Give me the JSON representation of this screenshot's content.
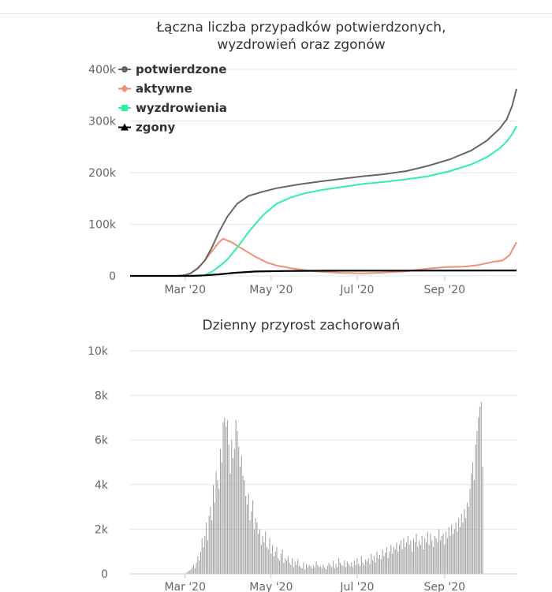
{
  "chart_data": [
    {
      "type": "line",
      "title_lines": [
        "Łączna liczba przypadków potwierdzonych,",
        "wyzdrowień oraz zgonów"
      ],
      "x_range": [
        "2020-01-22",
        "2020-10-22"
      ],
      "x_ticks": [
        {
          "date": "2020-03-01",
          "label": "Mar '20"
        },
        {
          "date": "2020-05-01",
          "label": "May '20"
        },
        {
          "date": "2020-07-01",
          "label": "Jul '20"
        },
        {
          "date": "2020-09-01",
          "label": "Sep '20"
        }
      ],
      "y_range": [
        0,
        400000
      ],
      "y_ticks": [
        {
          "value": 0,
          "label": "0"
        },
        {
          "value": 100000,
          "label": "100k"
        },
        {
          "value": 200000,
          "label": "200k"
        },
        {
          "value": 300000,
          "label": "300k"
        },
        {
          "value": 400000,
          "label": "400k"
        }
      ],
      "grid": true,
      "legend": "top-left",
      "series": [
        {
          "name": "potwierdzone",
          "color": "#666666",
          "marker": "circle",
          "points": [
            [
              "2020-01-22",
              0
            ],
            [
              "2020-02-25",
              0
            ],
            [
              "2020-03-01",
              1500
            ],
            [
              "2020-03-05",
              5000
            ],
            [
              "2020-03-10",
              15000
            ],
            [
              "2020-03-15",
              30000
            ],
            [
              "2020-03-20",
              55000
            ],
            [
              "2020-03-25",
              85000
            ],
            [
              "2020-03-31",
              115000
            ],
            [
              "2020-04-07",
              140000
            ],
            [
              "2020-04-15",
              155000
            ],
            [
              "2020-04-25",
              163000
            ],
            [
              "2020-05-05",
              170000
            ],
            [
              "2020-05-20",
              177000
            ],
            [
              "2020-06-05",
              183000
            ],
            [
              "2020-06-20",
              188000
            ],
            [
              "2020-07-05",
              193000
            ],
            [
              "2020-07-20",
              197000
            ],
            [
              "2020-08-05",
              203000
            ],
            [
              "2020-08-20",
              213000
            ],
            [
              "2020-09-05",
              226000
            ],
            [
              "2020-09-20",
              243000
            ],
            [
              "2020-10-01",
              262000
            ],
            [
              "2020-10-10",
              285000
            ],
            [
              "2020-10-15",
              303000
            ],
            [
              "2020-10-19",
              330000
            ],
            [
              "2020-10-22",
              362000
            ]
          ]
        },
        {
          "name": "aktywne",
          "color": "#f28f79",
          "marker": "diamond",
          "points": [
            [
              "2020-01-22",
              0
            ],
            [
              "2020-02-25",
              0
            ],
            [
              "2020-03-01",
              1500
            ],
            [
              "2020-03-05",
              5000
            ],
            [
              "2020-03-10",
              14000
            ],
            [
              "2020-03-15",
              30000
            ],
            [
              "2020-03-20",
              48000
            ],
            [
              "2020-03-25",
              65000
            ],
            [
              "2020-03-28",
              72000
            ],
            [
              "2020-04-03",
              65000
            ],
            [
              "2020-04-12",
              50000
            ],
            [
              "2020-04-20",
              37000
            ],
            [
              "2020-04-28",
              26000
            ],
            [
              "2020-05-05",
              20000
            ],
            [
              "2020-05-15",
              15000
            ],
            [
              "2020-05-25",
              11000
            ],
            [
              "2020-06-05",
              8000
            ],
            [
              "2020-06-20",
              6000
            ],
            [
              "2020-07-05",
              5000
            ],
            [
              "2020-07-20",
              6500
            ],
            [
              "2020-08-05",
              9000
            ],
            [
              "2020-08-20",
              14000
            ],
            [
              "2020-09-01",
              17000
            ],
            [
              "2020-09-15",
              18000
            ],
            [
              "2020-09-25",
              21000
            ],
            [
              "2020-10-05",
              27000
            ],
            [
              "2020-10-12",
              30000
            ],
            [
              "2020-10-17",
              40000
            ],
            [
              "2020-10-22",
              65000
            ]
          ]
        },
        {
          "name": "wyzdrowienia",
          "color": "#2ef2a0",
          "marker": "square",
          "points": [
            [
              "2020-01-22",
              0
            ],
            [
              "2020-03-12",
              0
            ],
            [
              "2020-03-15",
              2000
            ],
            [
              "2020-03-20",
              8000
            ],
            [
              "2020-03-25",
              18000
            ],
            [
              "2020-03-31",
              32000
            ],
            [
              "2020-04-07",
              55000
            ],
            [
              "2020-04-15",
              85000
            ],
            [
              "2020-04-25",
              117000
            ],
            [
              "2020-05-05",
              140000
            ],
            [
              "2020-05-15",
              152000
            ],
            [
              "2020-05-25",
              160000
            ],
            [
              "2020-06-05",
              166000
            ],
            [
              "2020-06-20",
              172000
            ],
            [
              "2020-07-05",
              178000
            ],
            [
              "2020-07-20",
              182000
            ],
            [
              "2020-08-05",
              187000
            ],
            [
              "2020-08-20",
              193000
            ],
            [
              "2020-09-05",
              203000
            ],
            [
              "2020-09-20",
              216000
            ],
            [
              "2020-10-01",
              230000
            ],
            [
              "2020-10-10",
              247000
            ],
            [
              "2020-10-15",
              260000
            ],
            [
              "2020-10-19",
              275000
            ],
            [
              "2020-10-22",
              290000
            ]
          ]
        },
        {
          "name": "zgony",
          "color": "#000000",
          "marker": "triangle",
          "points": [
            [
              "2020-01-22",
              0
            ],
            [
              "2020-03-05",
              0
            ],
            [
              "2020-03-15",
              1000
            ],
            [
              "2020-03-25",
              3000
            ],
            [
              "2020-04-05",
              6000
            ],
            [
              "2020-04-20",
              8500
            ],
            [
              "2020-05-10",
              9500
            ],
            [
              "2020-06-10",
              10000
            ],
            [
              "2020-08-01",
              10200
            ],
            [
              "2020-10-22",
              10600
            ]
          ]
        }
      ]
    },
    {
      "type": "bar",
      "title": "Dzienny przyrost zachorowań",
      "x_range": [
        "2020-01-22",
        "2020-10-22"
      ],
      "x_ticks": [
        {
          "date": "2020-03-01",
          "label": "Mar '20"
        },
        {
          "date": "2020-05-01",
          "label": "May '20"
        },
        {
          "date": "2020-07-01",
          "label": "Jul '20"
        },
        {
          "date": "2020-09-01",
          "label": "Sep '20"
        }
      ],
      "y_range": [
        0,
        10000
      ],
      "y_ticks": [
        {
          "value": 0,
          "label": "0"
        },
        {
          "value": 2000,
          "label": "2k"
        },
        {
          "value": 4000,
          "label": "4k"
        },
        {
          "value": 6000,
          "label": "6k"
        },
        {
          "value": 8000,
          "label": "8k"
        },
        {
          "value": 10000,
          "label": "10k"
        }
      ],
      "grid": true,
      "color": "#a0a0a0",
      "daily_start": "2020-02-23",
      "daily_values": [
        0,
        0,
        0,
        0,
        0,
        5,
        10,
        20,
        50,
        100,
        150,
        200,
        300,
        400,
        250,
        500,
        800,
        600,
        1000,
        1600,
        1200,
        1700,
        2300,
        1500,
        2600,
        3000,
        2400,
        4000,
        3200,
        4600,
        4200,
        3800,
        5600,
        5000,
        6800,
        7000,
        6600,
        6900,
        5800,
        4500,
        6000,
        5200,
        5600,
        6900,
        6400,
        5700,
        4800,
        5300,
        4400,
        4200,
        3500,
        3100,
        3600,
        2400,
        2800,
        3300,
        2000,
        2500,
        2300,
        1800,
        2000,
        1300,
        1700,
        1400,
        1900,
        1200,
        1100,
        1600,
        900,
        1300,
        800,
        1000,
        1200,
        700,
        600,
        900,
        1100,
        500,
        700,
        600,
        800,
        500,
        400,
        700,
        300,
        550,
        400,
        650,
        350,
        300,
        250,
        500,
        200,
        450,
        300,
        400,
        350,
        250,
        380,
        300,
        550,
        400,
        300,
        350,
        250,
        420,
        300,
        200,
        350,
        500,
        400,
        300,
        600,
        250,
        450,
        300,
        700,
        500,
        400,
        350,
        600,
        300,
        550,
        450,
        350,
        500,
        300,
        600,
        400,
        700,
        450,
        350,
        800,
        500,
        400,
        650,
        550,
        700,
        450,
        900,
        600,
        800,
        500,
        1000,
        700,
        850,
        650,
        1100,
        800,
        950,
        1200,
        700,
        1000,
        1300,
        900,
        1200,
        1100,
        1400,
        1000,
        1300,
        1500,
        1100,
        1600,
        1200,
        1400,
        1700,
        1300,
        1500,
        1000,
        1600,
        1400,
        1800,
        1200,
        1500,
        1300,
        1700,
        1100,
        1600,
        1400,
        1900,
        1300,
        1800,
        1500,
        1200,
        1700,
        1600,
        1400,
        2000,
        1500,
        1700,
        1800,
        1300,
        1900,
        1600,
        2100,
        1700,
        2200,
        1800,
        2000,
        2300,
        1900,
        2500,
        2100,
        2700,
        2300,
        2900,
        2500,
        3200,
        3000,
        3800,
        4500,
        5000,
        4200,
        5800,
        6400,
        7000,
        7500,
        7700,
        4800
      ]
    }
  ]
}
